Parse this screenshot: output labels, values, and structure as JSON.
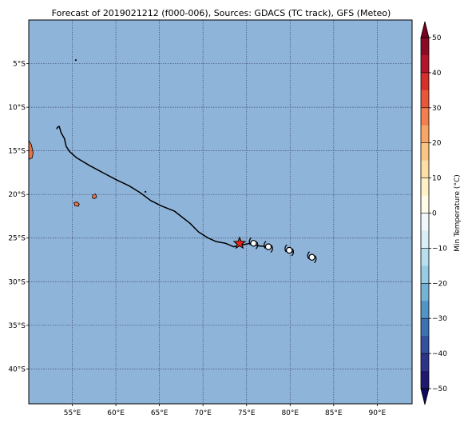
{
  "title": "Forecast of 2019021212 (f000-006), Sources: GDACS (TC track), GFS (Meteo)",
  "map": {
    "lon_range": [
      50,
      94
    ],
    "lat_range": [
      -44,
      0
    ],
    "ocean_color": "#8fb4d9",
    "grid": true,
    "x_ticks": [
      {
        "value": 55,
        "label": "55°E"
      },
      {
        "value": 60,
        "label": "60°E"
      },
      {
        "value": 65,
        "label": "65°E"
      },
      {
        "value": 70,
        "label": "70°E"
      },
      {
        "value": 75,
        "label": "75°E"
      },
      {
        "value": 80,
        "label": "80°E"
      },
      {
        "value": 85,
        "label": "85°E"
      },
      {
        "value": 90,
        "label": "90°E"
      }
    ],
    "y_ticks": [
      {
        "value": -5,
        "label": "5°S"
      },
      {
        "value": -10,
        "label": "10°S"
      },
      {
        "value": -15,
        "label": "15°S"
      },
      {
        "value": -20,
        "label": "20°S"
      },
      {
        "value": -25,
        "label": "25°S"
      },
      {
        "value": -30,
        "label": "30°S"
      },
      {
        "value": -35,
        "label": "35°S"
      },
      {
        "value": -40,
        "label": "40°S"
      }
    ]
  },
  "land": {
    "warm_color": "#e8734a",
    "islands": [
      {
        "name": "reunion",
        "points": [
          [
            55.2,
            -20.95
          ],
          [
            55.5,
            -20.85
          ],
          [
            55.8,
            -21.1
          ],
          [
            55.7,
            -21.35
          ],
          [
            55.3,
            -21.3
          ]
        ]
      },
      {
        "name": "mauritius",
        "points": [
          [
            57.35,
            -20.05
          ],
          [
            57.65,
            -19.95
          ],
          [
            57.8,
            -20.3
          ],
          [
            57.55,
            -20.5
          ],
          [
            57.3,
            -20.4
          ]
        ]
      },
      {
        "name": "madagascar-edge",
        "points": [
          [
            50,
            -13.8
          ],
          [
            50.3,
            -14.3
          ],
          [
            50.5,
            -15.2
          ],
          [
            50.4,
            -15.8
          ],
          [
            50,
            -16.0
          ]
        ]
      }
    ],
    "dots": [
      [
        55.4,
        -4.6
      ],
      [
        63.4,
        -19.7
      ]
    ]
  },
  "track": [
    [
      53.2,
      -12.5
    ],
    [
      53.3,
      -12.3
    ],
    [
      53.5,
      -12.2
    ],
    [
      53.7,
      -12.9
    ],
    [
      54.1,
      -13.6
    ],
    [
      54.3,
      -14.5
    ],
    [
      54.7,
      -15.1
    ],
    [
      55.5,
      -15.8
    ],
    [
      57.0,
      -16.7
    ],
    [
      58.5,
      -17.5
    ],
    [
      60.0,
      -18.3
    ],
    [
      61.5,
      -19.0
    ],
    [
      62.8,
      -19.8
    ],
    [
      64.0,
      -20.7
    ],
    [
      65.2,
      -21.3
    ],
    [
      66.7,
      -21.9
    ],
    [
      67.6,
      -22.6
    ],
    [
      68.5,
      -23.3
    ],
    [
      69.5,
      -24.3
    ],
    [
      70.6,
      -25.0
    ],
    [
      71.5,
      -25.4
    ],
    [
      72.6,
      -25.6
    ],
    [
      73.5,
      -26.0
    ],
    [
      74.4,
      -25.8
    ],
    [
      75.4,
      -25.6
    ],
    [
      76.4,
      -25.9
    ],
    [
      77.6,
      -26.0
    ],
    [
      78.4,
      -26.2
    ],
    [
      79.4,
      -26.4
    ],
    [
      80.4,
      -26.6
    ],
    [
      81.4,
      -26.9
    ],
    [
      82.2,
      -27.2
    ]
  ],
  "track_gaps_lon": [
    [
      74.6,
      75.2
    ],
    [
      76.5,
      77.0
    ],
    [
      78.1,
      79.0
    ],
    [
      80.6,
      81.6
    ]
  ],
  "current_position": {
    "lon": 74.2,
    "lat": -25.6,
    "color": "#e8231c"
  },
  "forecast_symbols": [
    {
      "lon": 75.8,
      "lat": -25.6
    },
    {
      "lon": 77.5,
      "lat": -26.0
    },
    {
      "lon": 79.9,
      "lat": -26.4
    },
    {
      "lon": 82.5,
      "lat": -27.2
    }
  ],
  "colorbar": {
    "label": "Min Temperature (°C)",
    "min": -50,
    "max": 50,
    "ticks": [
      {
        "value": 50,
        "label": "50"
      },
      {
        "value": 40,
        "label": "40"
      },
      {
        "value": 30,
        "label": "30"
      },
      {
        "value": 20,
        "label": "20"
      },
      {
        "value": 10,
        "label": "10"
      },
      {
        "value": 0,
        "label": "0"
      },
      {
        "value": -10,
        "label": "−10"
      },
      {
        "value": -20,
        "label": "−20"
      },
      {
        "value": -30,
        "label": "−30"
      },
      {
        "value": -40,
        "label": "−40"
      },
      {
        "value": -50,
        "label": "−50"
      }
    ],
    "bands": [
      {
        "from": 45,
        "to": 50,
        "color": "#8b0a25"
      },
      {
        "from": 40,
        "to": 45,
        "color": "#b3152b"
      },
      {
        "from": 35,
        "to": 40,
        "color": "#d7302b"
      },
      {
        "from": 30,
        "to": 35,
        "color": "#e8573a"
      },
      {
        "from": 25,
        "to": 30,
        "color": "#f37e4e"
      },
      {
        "from": 20,
        "to": 25,
        "color": "#f9a566"
      },
      {
        "from": 15,
        "to": 20,
        "color": "#fcc584"
      },
      {
        "from": 10,
        "to": 15,
        "color": "#fddea4"
      },
      {
        "from": 5,
        "to": 10,
        "color": "#fef1c6"
      },
      {
        "from": 0,
        "to": 5,
        "color": "#fffbe6"
      },
      {
        "from": -5,
        "to": 0,
        "color": "#f1f8fb"
      },
      {
        "from": -10,
        "to": -5,
        "color": "#d9eef5"
      },
      {
        "from": -15,
        "to": -10,
        "color": "#b8dfee"
      },
      {
        "from": -20,
        "to": -15,
        "color": "#97cce4"
      },
      {
        "from": -25,
        "to": -20,
        "color": "#74b2d6"
      },
      {
        "from": -30,
        "to": -25,
        "color": "#5394c6"
      },
      {
        "from": -35,
        "to": -30,
        "color": "#3d72b2"
      },
      {
        "from": -40,
        "to": -35,
        "color": "#33519e"
      },
      {
        "from": -45,
        "to": -40,
        "color": "#2c3389"
      },
      {
        "from": -50,
        "to": -45,
        "color": "#1f1770"
      }
    ],
    "over_color": "#7a0020",
    "under_color": "#0f0a5e"
  }
}
